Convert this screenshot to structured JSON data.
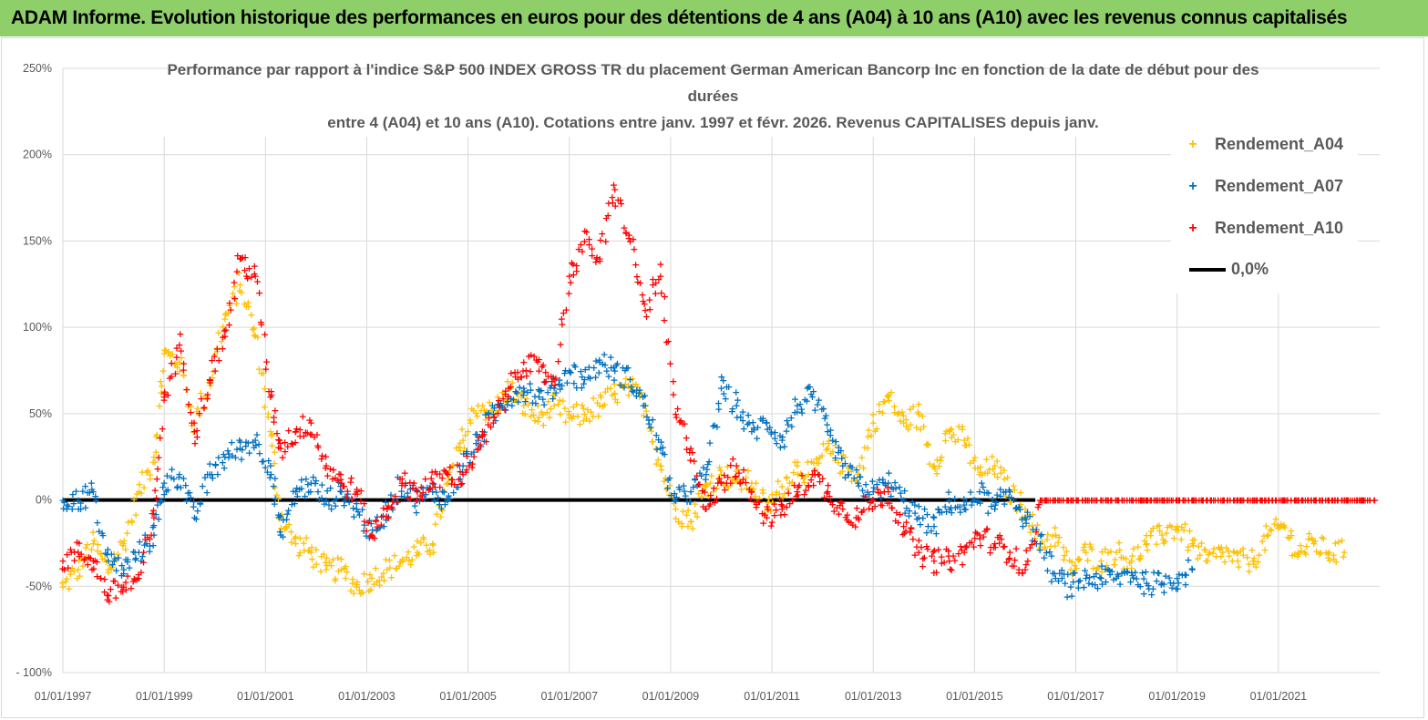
{
  "header": {
    "banner_text": "ADAM Informe. Evolution historique des performances en euros pour des détentions de 4 ans (A04) à 10 ans (A10) avec les revenus connus capitalisés"
  },
  "colors": {
    "banner_bg": "#8fcf6a",
    "a04": "#ffc000",
    "a07": "#0070c0",
    "a10": "#ff0000",
    "zero": "#000000",
    "grid": "#d9d9d9"
  },
  "chart_data": {
    "type": "scatter",
    "title_lines": [
      "Performance par rapport à l'indice S&P  500 INDEX GROSS TR  du placement German American Bancorp Inc en fonction de la date de début pour des",
      "durées",
      "entre 4 (A04) et 10 ans (A10).  Cotations entre janv. 1997 et févr.  2026. Revenus CAPITALISES depuis janv."
    ],
    "y_ticks": [
      "250%",
      "200%",
      "150%",
      "100%",
      "50%",
      "0%",
      "-50%",
      "- 100%"
    ],
    "y_range": [
      -100,
      250
    ],
    "x_ticks": [
      "01/01/1997",
      "01/01/1999",
      "01/01/2001",
      "01/01/2003",
      "01/01/2005",
      "01/01/2007",
      "01/01/2009",
      "01/01/2011",
      "01/01/2013",
      "01/01/2015",
      "01/01/2017",
      "01/01/2019",
      "01/01/2021"
    ],
    "x_range": [
      1997.0,
      2023.0
    ],
    "grid": "vertical and horizontal",
    "legend_position": "right",
    "legend": [
      "Rendement_A04",
      "Rendement_A07",
      "Rendement_A10",
      "0,0%"
    ],
    "series": [
      {
        "name": "Rendement_A04",
        "marker": "+",
        "x": [
          1997.0,
          1997.3,
          1997.6,
          1997.9,
          1998.2,
          1998.5,
          1998.8,
          1999.0,
          1999.3,
          1999.6,
          1999.9,
          2000.2,
          2000.5,
          2000.8,
          2001.1,
          2001.3,
          2001.6,
          2001.9,
          2002.2,
          2002.5,
          2002.8,
          2003.1,
          2003.4,
          2003.7,
          2004.0,
          2004.3,
          2004.6,
          2004.9,
          2005.2,
          2005.5,
          2005.8,
          2006.1,
          2006.4,
          2006.7,
          2007.0,
          2007.3,
          2007.6,
          2007.9,
          2008.2,
          2008.5,
          2008.8,
          2009.1,
          2009.4,
          2009.7,
          2010.0,
          2010.3,
          2010.6,
          2010.9,
          2011.2,
          2011.5,
          2011.8,
          2012.1,
          2012.4,
          2012.7,
          2013.0,
          2013.3,
          2013.6,
          2013.9,
          2014.2,
          2014.5,
          2014.8,
          2015.1,
          2015.4,
          2015.7,
          2016.0,
          2016.3,
          2016.6,
          2016.9,
          2017.2,
          2017.5,
          2017.8,
          2018.1,
          2018.4,
          2018.7,
          2019.0,
          2019.3,
          2019.6,
          2019.9,
          2020.2,
          2020.5,
          2020.8,
          2021.1,
          2021.4,
          2021.7,
          2022.0,
          2022.3
        ],
        "y": [
          -50,
          -40,
          -25,
          -40,
          -25,
          5,
          25,
          85,
          80,
          45,
          70,
          105,
          125,
          95,
          40,
          -10,
          -25,
          -30,
          -40,
          -40,
          -50,
          -45,
          -40,
          -35,
          -30,
          -25,
          10,
          35,
          55,
          50,
          65,
          55,
          48,
          55,
          48,
          50,
          55,
          62,
          65,
          55,
          20,
          -5,
          -12,
          8,
          15,
          12,
          10,
          -5,
          8,
          20,
          15,
          30,
          20,
          15,
          45,
          60,
          45,
          50,
          20,
          40,
          35,
          15,
          20,
          5,
          -5,
          -25,
          -20,
          -40,
          -30,
          -35,
          -30,
          -35,
          -25,
          -20,
          -15,
          -25,
          -35,
          -30,
          -35,
          -35,
          -20,
          -15,
          -30,
          -25,
          -30,
          -30
        ]
      },
      {
        "name": "Rendement_A07",
        "marker": "+",
        "x": [
          1997.0,
          1997.3,
          1997.6,
          1997.9,
          1998.2,
          1998.5,
          1998.8,
          1999.0,
          1999.3,
          1999.6,
          1999.9,
          2000.2,
          2000.5,
          2000.8,
          2001.1,
          2001.3,
          2001.6,
          2001.9,
          2002.2,
          2002.5,
          2002.8,
          2003.1,
          2003.4,
          2003.7,
          2004.0,
          2004.3,
          2004.6,
          2004.9,
          2005.2,
          2005.5,
          2005.8,
          2006.1,
          2006.4,
          2006.7,
          2007.0,
          2007.3,
          2007.6,
          2007.9,
          2008.2,
          2008.5,
          2008.8,
          2009.1,
          2009.4,
          2009.7,
          2010.0,
          2010.3,
          2010.6,
          2010.9,
          2011.2,
          2011.5,
          2011.8,
          2012.1,
          2012.4,
          2012.7,
          2013.0,
          2013.3,
          2013.6,
          2013.9,
          2014.2,
          2014.5,
          2014.8,
          2015.1,
          2015.4,
          2015.7,
          2016.0,
          2016.3,
          2016.6,
          2016.9,
          2017.2,
          2017.5,
          2017.8,
          2018.1,
          2018.4,
          2018.7,
          2019.0,
          2019.3
        ],
        "y": [
          0,
          0,
          5,
          -35,
          -40,
          -30,
          -20,
          10,
          15,
          -10,
          15,
          25,
          30,
          35,
          20,
          -20,
          5,
          10,
          0,
          5,
          -5,
          -20,
          -5,
          10,
          0,
          5,
          0,
          20,
          35,
          50,
          60,
          65,
          60,
          65,
          75,
          70,
          80,
          75,
          70,
          55,
          30,
          0,
          5,
          15,
          65,
          55,
          40,
          45,
          35,
          55,
          60,
          40,
          20,
          10,
          5,
          10,
          0,
          -10,
          -15,
          0,
          -5,
          5,
          -5,
          5,
          -10,
          -25,
          -45,
          -50,
          -45,
          -45,
          -45,
          -42,
          -48,
          -48,
          -45,
          -40
        ]
      },
      {
        "name": "Rendement_A10",
        "marker": "+",
        "x": [
          1997.0,
          1997.3,
          1997.6,
          1997.9,
          1998.2,
          1998.5,
          1998.8,
          1999.0,
          1999.3,
          1999.6,
          1999.9,
          2000.2,
          2000.5,
          2000.8,
          2001.1,
          2001.3,
          2001.6,
          2001.9,
          2002.2,
          2002.5,
          2002.8,
          2003.1,
          2003.4,
          2003.7,
          2004.0,
          2004.3,
          2004.6,
          2004.9,
          2005.2,
          2005.5,
          2005.8,
          2006.1,
          2006.4,
          2006.7,
          2007.0,
          2007.3,
          2007.6,
          2007.9,
          2008.2,
          2008.5,
          2008.8,
          2009.1,
          2009.4,
          2009.7,
          2010.0,
          2010.3,
          2010.6,
          2010.9,
          2011.2,
          2011.5,
          2011.8,
          2012.1,
          2012.4,
          2012.7,
          2013.0,
          2013.3,
          2013.6,
          2013.9,
          2014.2,
          2014.5,
          2014.8,
          2015.1,
          2015.4,
          2015.7,
          2016.0,
          2016.3,
          2016.6,
          2016.9,
          2017.2,
          2017.5,
          2017.8,
          2018.1,
          2018.4,
          2018.7,
          2019.0,
          2019.3,
          2019.6,
          2019.9,
          2020.2,
          2020.5,
          2020.8,
          2021.1,
          2021.4,
          2021.7,
          2022.0,
          2022.3,
          2022.6,
          2022.9
        ],
        "y": [
          -35,
          -30,
          -35,
          -55,
          -50,
          -45,
          -10,
          60,
          90,
          40,
          70,
          95,
          140,
          130,
          60,
          30,
          40,
          45,
          20,
          10,
          5,
          -20,
          -5,
          10,
          5,
          10,
          15,
          15,
          30,
          45,
          65,
          80,
          75,
          70,
          130,
          150,
          140,
          180,
          150,
          110,
          130,
          50,
          30,
          -5,
          10,
          20,
          5,
          -10,
          -5,
          5,
          15,
          5,
          -5,
          -10,
          0,
          5,
          -15,
          -30,
          -35,
          -35,
          -30,
          -20,
          -25,
          -30,
          -40,
          0,
          0,
          0,
          0,
          0,
          0,
          0,
          0,
          0,
          0,
          0,
          0,
          0,
          0,
          0,
          0,
          0,
          0,
          0,
          0,
          0,
          0,
          0
        ]
      }
    ],
    "reference_line": {
      "name": "0,0%",
      "y": 0
    }
  }
}
